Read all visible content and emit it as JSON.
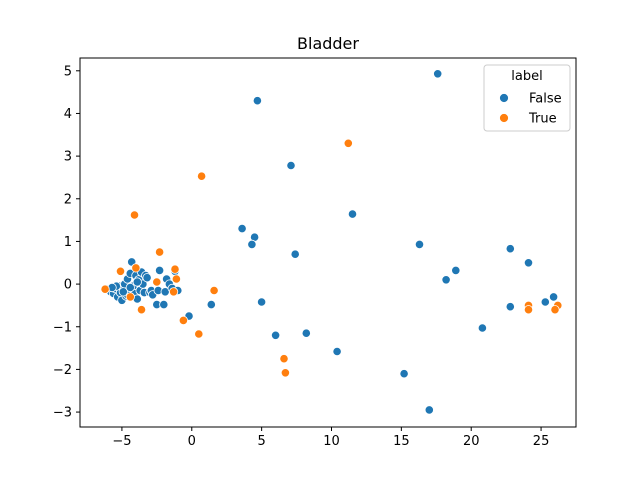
{
  "chart_data": {
    "type": "scatter",
    "title": "Bladder",
    "xlabel": "",
    "ylabel": "",
    "xlim": [
      -8,
      27.5
    ],
    "ylim": [
      -3.35,
      5.3
    ],
    "xticks": [
      -5,
      0,
      5,
      10,
      15,
      20,
      25
    ],
    "yticks": [
      -3,
      -2,
      -1,
      0,
      1,
      2,
      3,
      4,
      5
    ],
    "xtick_labels": [
      "−5",
      "0",
      "5",
      "10",
      "15",
      "20",
      "25"
    ],
    "ytick_labels": [
      "−3",
      "−2",
      "−1",
      "0",
      "1",
      "2",
      "3",
      "4",
      "5"
    ],
    "grid": false,
    "legend": {
      "title": "label",
      "placement": "top-right",
      "entries": [
        "False",
        "True"
      ]
    },
    "colors": {
      "False": "#1f77b4",
      "True": "#ff7f0e"
    },
    "series": [
      {
        "name": "False",
        "points": [
          [
            17.6,
            4.93
          ],
          [
            4.7,
            4.3
          ],
          [
            7.1,
            2.78
          ],
          [
            11.5,
            1.64
          ],
          [
            3.6,
            1.3
          ],
          [
            4.5,
            1.1
          ],
          [
            4.3,
            0.93
          ],
          [
            16.3,
            0.93
          ],
          [
            7.4,
            0.7
          ],
          [
            22.8,
            0.83
          ],
          [
            24.1,
            0.5
          ],
          [
            18.9,
            0.32
          ],
          [
            18.2,
            0.1
          ],
          [
            22.8,
            -0.53
          ],
          [
            25.3,
            -0.42
          ],
          [
            25.9,
            -0.3
          ],
          [
            5.0,
            -0.42
          ],
          [
            1.4,
            -0.48
          ],
          [
            -0.2,
            -0.75
          ],
          [
            6.0,
            -1.2
          ],
          [
            8.2,
            -1.15
          ],
          [
            20.8,
            -1.03
          ],
          [
            10.4,
            -1.58
          ],
          [
            15.2,
            -2.1
          ],
          [
            17.0,
            -2.95
          ],
          [
            -6.0,
            -0.12
          ],
          [
            -5.8,
            -0.18
          ],
          [
            -5.6,
            -0.22
          ],
          [
            -5.5,
            -0.1
          ],
          [
            -5.3,
            -0.3
          ],
          [
            -5.2,
            -0.05
          ],
          [
            -5.1,
            -0.2
          ],
          [
            -5.0,
            -0.38
          ],
          [
            -4.9,
            -0.1
          ],
          [
            -4.8,
            0.0
          ],
          [
            -4.7,
            -0.28
          ],
          [
            -4.6,
            0.12
          ],
          [
            -4.5,
            -0.15
          ],
          [
            -4.4,
            0.25
          ],
          [
            -4.3,
            0.52
          ],
          [
            -4.2,
            -0.05
          ],
          [
            -4.1,
            -0.22
          ],
          [
            -4.0,
            0.2
          ],
          [
            -3.9,
            -0.35
          ],
          [
            -3.8,
            0.1
          ],
          [
            -3.7,
            -0.15
          ],
          [
            -3.6,
            0.28
          ],
          [
            -3.5,
            0.0
          ],
          [
            -3.4,
            -0.2
          ],
          [
            -3.3,
            0.2
          ],
          [
            -3.2,
            0.15
          ],
          [
            -3.0,
            -0.2
          ],
          [
            -2.9,
            -0.15
          ],
          [
            -2.8,
            -0.25
          ],
          [
            -2.5,
            -0.48
          ],
          [
            -2.4,
            -0.15
          ],
          [
            -2.3,
            0.32
          ],
          [
            -2.0,
            -0.48
          ],
          [
            -1.9,
            -0.18
          ],
          [
            -1.8,
            0.12
          ],
          [
            -1.6,
            0.0
          ],
          [
            -1.4,
            -0.1
          ],
          [
            -1.2,
            0.3
          ],
          [
            -1.0,
            -0.15
          ],
          [
            -4.6,
            -0.25
          ],
          [
            -5.4,
            -0.05
          ],
          [
            -4.9,
            -0.18
          ],
          [
            -4.4,
            -0.08
          ],
          [
            -3.9,
            0.05
          ],
          [
            -5.7,
            -0.08
          ]
        ]
      },
      {
        "name": "True",
        "points": [
          [
            11.2,
            3.3
          ],
          [
            0.7,
            2.53
          ],
          [
            -4.1,
            1.62
          ],
          [
            -2.3,
            0.75
          ],
          [
            -1.2,
            0.35
          ],
          [
            -4.0,
            0.38
          ],
          [
            -5.1,
            0.3
          ],
          [
            -2.5,
            0.05
          ],
          [
            -1.1,
            0.12
          ],
          [
            -1.3,
            -0.18
          ],
          [
            1.6,
            -0.15
          ],
          [
            -3.6,
            -0.6
          ],
          [
            -0.6,
            -0.85
          ],
          [
            0.5,
            -1.17
          ],
          [
            24.1,
            -0.5
          ],
          [
            24.1,
            -0.6
          ],
          [
            26.2,
            -0.5
          ],
          [
            26.0,
            -0.6
          ],
          [
            6.6,
            -1.75
          ],
          [
            6.7,
            -2.08
          ],
          [
            -6.2,
            -0.12
          ],
          [
            -4.4,
            -0.3
          ]
        ]
      }
    ]
  }
}
